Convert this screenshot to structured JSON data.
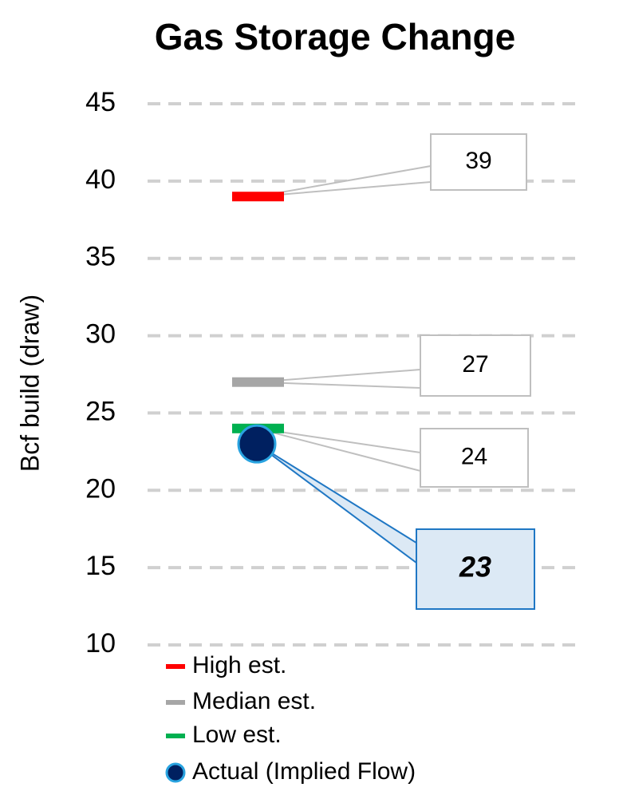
{
  "chart_data": {
    "type": "dot",
    "title": "Gas Storage Change",
    "y_label": "Bcf build (draw)",
    "categories": [
      null
    ],
    "series": [
      {
        "name": "High est.",
        "color": "#ff0000",
        "marker": "dash",
        "values": [
          39
        ]
      },
      {
        "name": "Median est.",
        "color": "#a6a6a6",
        "marker": "dash",
        "values": [
          27
        ]
      },
      {
        "name": "Low est.",
        "color": "#00b050",
        "marker": "dash",
        "values": [
          24
        ]
      },
      {
        "name": "Actual (Implied Flow)",
        "color": "#002060",
        "marker": "circle",
        "values": [
          23
        ]
      }
    ],
    "ylim": [
      10,
      45
    ],
    "yticks": [
      10,
      15,
      20,
      25,
      30,
      35,
      40,
      45
    ],
    "grid": true,
    "legend": "bottom"
  }
}
